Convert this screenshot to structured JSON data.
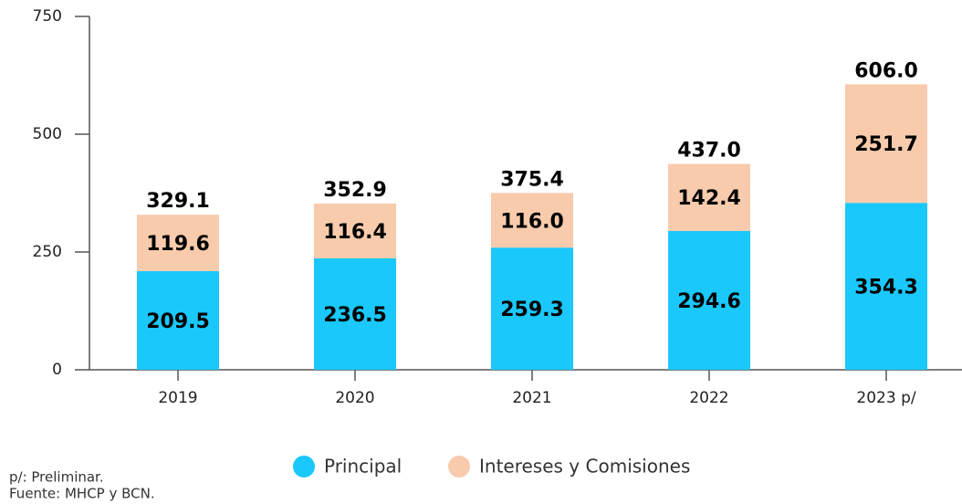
{
  "chart_data": {
    "type": "stacked_bar",
    "categories": [
      "2019",
      "2020",
      "2021",
      "2022",
      "2023 p/"
    ],
    "series": [
      {
        "name": "Principal",
        "color": "#1ac8fc",
        "values": [
          209.5,
          236.5,
          259.3,
          294.6,
          354.3
        ],
        "value_labels": [
          "209.5",
          "236.5",
          "259.3",
          "294.6",
          "354.3"
        ]
      },
      {
        "name": "Intereses y Comisiones",
        "color": "#f8cbad",
        "values": [
          119.6,
          116.4,
          116.0,
          142.4,
          251.7
        ],
        "value_labels": [
          "119.6",
          "116.4",
          "116.0",
          "142.4",
          "251.7"
        ]
      }
    ],
    "totals": [
      329.1,
      352.9,
      375.4,
      437.0,
      606.0
    ],
    "total_labels": [
      "329.1",
      "352.9",
      "375.4",
      "437.0",
      "606.0"
    ],
    "ylim": [
      0,
      750
    ],
    "yticks": [
      0,
      250,
      500,
      750
    ],
    "notes": [
      "p/: Preliminar.",
      "Fuente: MHCP y BCN."
    ]
  }
}
